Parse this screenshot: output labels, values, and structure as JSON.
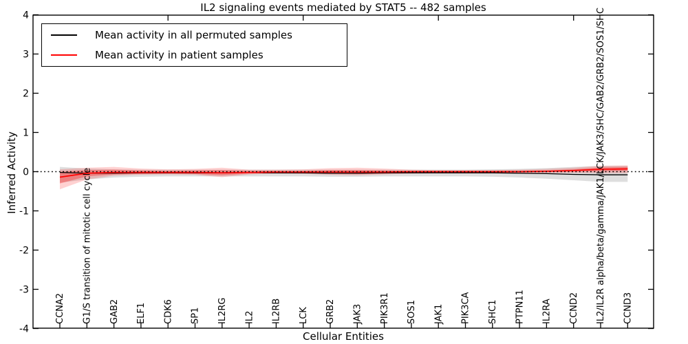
{
  "title": "IL2 signaling events mediated by STAT5 -- 482 samples",
  "legend": {
    "items": [
      {
        "label": "Mean activity in all permuted samples",
        "color": "#000000"
      },
      {
        "label": "Mean activity in patient samples",
        "color": "#ff0000"
      }
    ]
  },
  "axes": {
    "x_label": "Cellular Entities",
    "y_label": "Inferred Activity",
    "y_ticks": [
      4,
      3,
      2,
      1,
      0,
      -1,
      -2,
      -3,
      -4
    ],
    "ylim": [
      -4,
      4
    ]
  },
  "colors": {
    "patient_line": "#ff0000",
    "permuted_line": "#000000",
    "permuted_band": "rgba(0,0,0,0.13)",
    "patient_band_outer": "rgba(255,0,0,0.18)",
    "patient_band_inner": "rgba(255,0,0,0.30)"
  },
  "chart_data": {
    "type": "line",
    "title": "IL2 signaling events mediated by STAT5 -- 482 samples",
    "xlabel": "Cellular Entities",
    "ylabel": "Inferred Activity",
    "ylim": [
      -4,
      4
    ],
    "grid": false,
    "legend_position": "upper left",
    "zero_line": {
      "y": 0,
      "style": "dotted",
      "color": "#000000"
    },
    "top_ticks_at_indices": [
      4,
      9,
      14,
      19
    ],
    "categories": [
      "CCNA2",
      "G1/S transition of mitotic cell cycle",
      "GAB2",
      "ELF1",
      "CDK6",
      "SP1",
      "IL2RG",
      "IL2",
      "IL2RB",
      "LCK",
      "GRB2",
      "JAK3",
      "PIK3R1",
      "SOS1",
      "JAK1",
      "PIK3CA",
      "SHC1",
      "PTPN11",
      "IL2RA",
      "CCND2",
      "IL2/IL2R alpha/beta/gamma/JAK1/LCK/JAK3/SHC/GAB2/GRB2/SOS1/SHC",
      "CCND3"
    ],
    "series": [
      {
        "name": "Mean activity in all permuted samples",
        "color": "#000000",
        "values": [
          -0.02,
          -0.04,
          -0.04,
          -0.03,
          -0.03,
          -0.03,
          -0.03,
          -0.02,
          -0.03,
          -0.03,
          -0.04,
          -0.04,
          -0.03,
          -0.03,
          -0.03,
          -0.03,
          -0.03,
          -0.04,
          -0.05,
          -0.07,
          -0.08,
          -0.08
        ]
      },
      {
        "name": "Mean activity in patient samples",
        "color": "#ff0000",
        "values": [
          -0.14,
          -0.04,
          -0.02,
          -0.02,
          -0.02,
          -0.02,
          -0.03,
          -0.02,
          -0.01,
          -0.01,
          -0.01,
          -0.01,
          -0.01,
          0,
          0,
          0,
          0,
          0,
          0.01,
          0.03,
          0.06,
          0.07
        ]
      }
    ],
    "bands": [
      {
        "name": "permuted-confidence-band",
        "upper": [
          0.12,
          0.08,
          0.06,
          0.05,
          0.05,
          0.05,
          0.05,
          0.05,
          0.05,
          0.05,
          0.05,
          0.05,
          0.05,
          0.05,
          0.05,
          0.05,
          0.06,
          0.07,
          0.09,
          0.12,
          0.15,
          0.15
        ],
        "lower": [
          -0.28,
          -0.2,
          -0.15,
          -0.13,
          -0.12,
          -0.12,
          -0.12,
          -0.12,
          -0.12,
          -0.12,
          -0.13,
          -0.13,
          -0.12,
          -0.12,
          -0.12,
          -0.12,
          -0.13,
          -0.15,
          -0.18,
          -0.22,
          -0.26,
          -0.26
        ]
      },
      {
        "name": "patient-confidence-band-outer",
        "upper": [
          0.06,
          0.1,
          0.12,
          0.08,
          0.06,
          0.07,
          0.1,
          0.05,
          0.05,
          0.06,
          0.09,
          0.1,
          0.08,
          0.05,
          0.04,
          0.04,
          0.04,
          0.05,
          0.07,
          0.1,
          0.15,
          0.16
        ],
        "lower": [
          -0.45,
          -0.2,
          -0.1,
          -0.08,
          -0.07,
          -0.08,
          -0.14,
          -0.07,
          -0.05,
          -0.06,
          -0.08,
          -0.09,
          -0.07,
          -0.05,
          -0.04,
          -0.04,
          -0.04,
          -0.04,
          -0.04,
          -0.03,
          -0.04,
          -0.04
        ]
      },
      {
        "name": "patient-confidence-band-inner",
        "upper": [
          0.0,
          0.04,
          0.05,
          0.03,
          0.02,
          0.03,
          0.04,
          0.02,
          0.02,
          0.02,
          0.04,
          0.04,
          0.03,
          0.02,
          0.02,
          0.02,
          0.02,
          0.02,
          0.03,
          0.06,
          0.11,
          0.12
        ],
        "lower": [
          -0.3,
          -0.12,
          -0.07,
          -0.06,
          -0.05,
          -0.06,
          -0.09,
          -0.05,
          -0.04,
          -0.04,
          -0.05,
          -0.06,
          -0.05,
          -0.03,
          -0.03,
          -0.03,
          -0.03,
          -0.02,
          -0.01,
          0.0,
          0.01,
          0.02
        ]
      }
    ]
  }
}
